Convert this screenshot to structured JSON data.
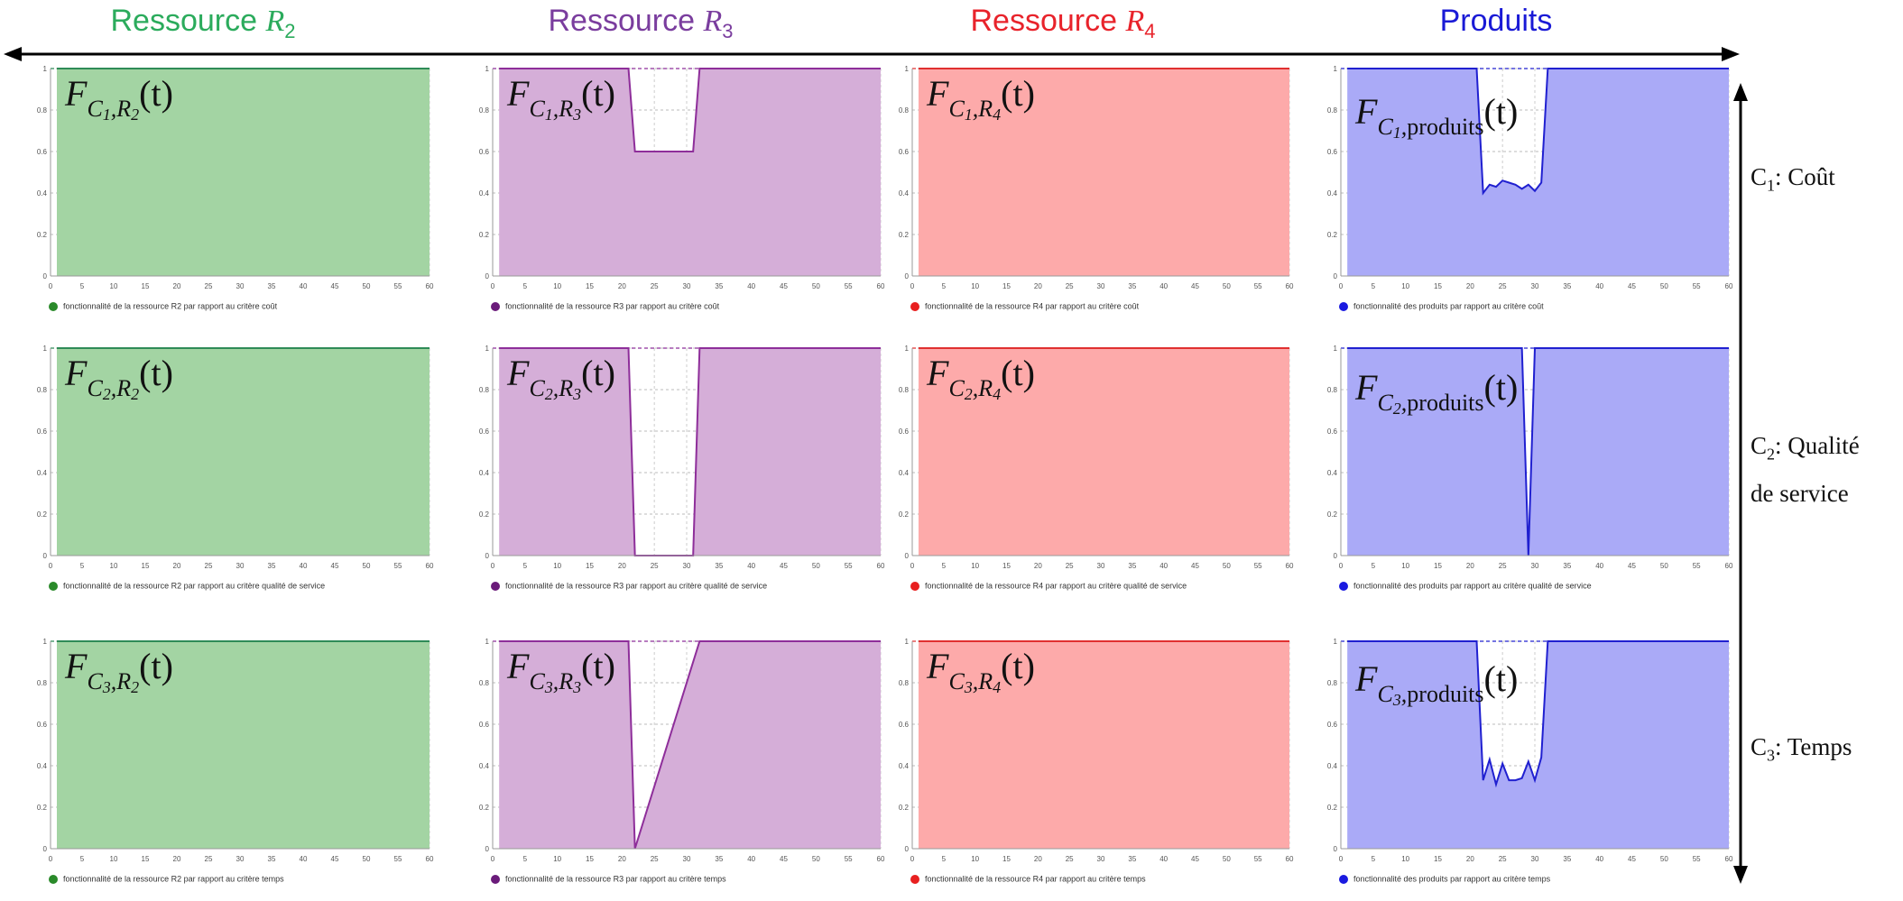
{
  "columns": [
    {
      "title_text": "Ressource ",
      "title_var": "R",
      "title_sub": "2",
      "color": "#2bab5c"
    },
    {
      "title_text": "Ressource ",
      "title_var": "R",
      "title_sub": "3",
      "color": "#7a3d9e"
    },
    {
      "title_text": "Ressource ",
      "title_var": "R",
      "title_sub": "4",
      "color": "#e8232b"
    },
    {
      "title_text": "Produits",
      "title_var": "",
      "title_sub": "",
      "color": "#1a1ad6"
    }
  ],
  "rows": [
    {
      "label_C": "C",
      "label_sub": "1",
      "label_text": ": Coût",
      "label_line2": ""
    },
    {
      "label_C": "C",
      "label_sub": "2",
      "label_text": ": Qualité",
      "label_line2": "de service"
    },
    {
      "label_C": "C",
      "label_sub": "3",
      "label_text": ":  Temps",
      "label_line2": ""
    }
  ],
  "panels": [
    {
      "f_sub": "C",
      "f_subsub": "1",
      "f_res": "R",
      "f_res_sub": "2",
      "f_t": "(t)",
      "legend": "fonctionnalité de la ressource R2 par rapport au critère coût"
    },
    {
      "f_sub": "C",
      "f_subsub": "1",
      "f_res": "R",
      "f_res_sub": "3",
      "f_t": "(t)",
      "legend": "fonctionnalité de la ressource R3 par rapport au critère coût"
    },
    {
      "f_sub": "C",
      "f_subsub": "1",
      "f_res": "R",
      "f_res_sub": "4",
      "f_t": "(t)",
      "legend": "fonctionnalité de la ressource R4 par rapport au critère coût"
    },
    {
      "f_sub": "C",
      "f_subsub": "1",
      "f_res": "produits",
      "f_res_sub": "",
      "f_t": "(t)",
      "legend": "fonctionnalité des produits par rapport au critère coût"
    },
    {
      "f_sub": "C",
      "f_subsub": "2",
      "f_res": "R",
      "f_res_sub": "2",
      "f_t": "(t)",
      "legend": "fonctionnalité de la ressource R2 par rapport au critère qualité de service"
    },
    {
      "f_sub": "C",
      "f_subsub": "2",
      "f_res": "R",
      "f_res_sub": "3",
      "f_t": "(t)",
      "legend": "fonctionnalité de la ressource R3 par rapport au critère qualité de service"
    },
    {
      "f_sub": "C",
      "f_subsub": "2",
      "f_res": "R",
      "f_res_sub": "4",
      "f_t": "(t)",
      "legend": "fonctionnalité de la ressource R4 par rapport au critère qualité de service"
    },
    {
      "f_sub": "C",
      "f_subsub": "2",
      "f_res": "produits",
      "f_res_sub": "",
      "f_t": "(t)",
      "legend": "fonctionnalité des produits par rapport au critère qualité de service"
    },
    {
      "f_sub": "C",
      "f_subsub": "3",
      "f_res": "R",
      "f_res_sub": "2",
      "f_t": "(t)",
      "legend": "fonctionnalité de la ressource R2 par rapport au critère temps"
    },
    {
      "f_sub": "C",
      "f_subsub": "3",
      "f_res": "R",
      "f_res_sub": "3",
      "f_t": "(t)",
      "legend": "fonctionnalité de la ressource R3 par rapport au critère temps"
    },
    {
      "f_sub": "C",
      "f_subsub": "3",
      "f_res": "R",
      "f_res_sub": "4",
      "f_t": "(t)",
      "legend": "fonctionnalité de la ressource R4 par rapport au critère temps"
    },
    {
      "f_sub": "C",
      "f_subsub": "3",
      "f_res": "produits",
      "f_res_sub": "",
      "f_t": "(t)",
      "legend": "fonctionnalité des produits par rapport au critère temps"
    }
  ],
  "chart_data": [
    {
      "type": "area",
      "title": "",
      "xlabel": "",
      "ylabel": "",
      "xlim": [
        0,
        60
      ],
      "ylim": [
        0,
        1
      ],
      "grid": true,
      "legend_placement": "bottom-left",
      "fill_color": "#a3d4a3",
      "line_color": "#2e8b57",
      "marker_color": "#2a8a2a",
      "x_ticks": [
        0,
        5,
        10,
        15,
        20,
        25,
        30,
        35,
        40,
        45,
        50,
        55,
        60
      ],
      "y_ticks": [
        "0",
        "0.2",
        "0.4",
        "0.6",
        "0.8",
        "1"
      ],
      "series": [
        {
          "x": [
            1,
            60
          ],
          "y": [
            1,
            1
          ]
        }
      ]
    },
    {
      "type": "area",
      "title": "",
      "xlabel": "",
      "ylabel": "",
      "xlim": [
        0,
        60
      ],
      "ylim": [
        0,
        1
      ],
      "grid": true,
      "legend_placement": "bottom-left",
      "fill_color": "#d5aed8",
      "line_color": "#8e2e9a",
      "marker_color": "#6a1b7a",
      "x_ticks": [
        0,
        5,
        10,
        15,
        20,
        25,
        30,
        35,
        40,
        45,
        50,
        55,
        60
      ],
      "y_ticks": [
        "0",
        "0.2",
        "0.4",
        "0.6",
        "0.8",
        "1"
      ],
      "series": [
        {
          "x": [
            1,
            21,
            22,
            31,
            32,
            60
          ],
          "y": [
            1,
            1,
            0.6,
            0.6,
            1,
            1
          ]
        }
      ]
    },
    {
      "type": "area",
      "title": "",
      "xlabel": "",
      "ylabel": "",
      "xlim": [
        0,
        60
      ],
      "ylim": [
        0,
        1
      ],
      "grid": true,
      "legend_placement": "bottom-left",
      "fill_color": "#fdaaaa",
      "line_color": "#e03030",
      "marker_color": "#e82020",
      "x_ticks": [
        0,
        5,
        10,
        15,
        20,
        25,
        30,
        35,
        40,
        45,
        50,
        55,
        60
      ],
      "y_ticks": [
        "0",
        "0.2",
        "0.4",
        "0.6",
        "0.8",
        "1"
      ],
      "series": [
        {
          "x": [
            1,
            60
          ],
          "y": [
            1,
            1
          ]
        }
      ]
    },
    {
      "type": "area",
      "title": "",
      "xlabel": "",
      "ylabel": "",
      "xlim": [
        0,
        60
      ],
      "ylim": [
        0,
        1
      ],
      "grid": true,
      "legend_placement": "bottom-left",
      "fill_color": "#aaaaf7",
      "line_color": "#2020d0",
      "marker_color": "#1a1ae0",
      "x_ticks": [
        0,
        5,
        10,
        15,
        20,
        25,
        30,
        35,
        40,
        45,
        50,
        55,
        60
      ],
      "y_ticks": [
        "0",
        "0.2",
        "0.4",
        "0.6",
        "0.8",
        "1"
      ],
      "series": [
        {
          "x": [
            1,
            21,
            22,
            23,
            24,
            25,
            26,
            27,
            28,
            29,
            30,
            31,
            32,
            60
          ],
          "y": [
            1,
            1,
            0.4,
            0.44,
            0.43,
            0.46,
            0.45,
            0.44,
            0.42,
            0.44,
            0.41,
            0.45,
            1,
            1
          ]
        }
      ]
    },
    {
      "type": "area",
      "title": "",
      "xlabel": "",
      "ylabel": "",
      "xlim": [
        0,
        60
      ],
      "ylim": [
        0,
        1
      ],
      "grid": true,
      "legend_placement": "bottom-left",
      "fill_color": "#a3d4a3",
      "line_color": "#2e8b57",
      "marker_color": "#2a8a2a",
      "x_ticks": [
        0,
        5,
        10,
        15,
        20,
        25,
        30,
        35,
        40,
        45,
        50,
        55,
        60
      ],
      "y_ticks": [
        "0",
        "0.2",
        "0.4",
        "0.6",
        "0.8",
        "1"
      ],
      "series": [
        {
          "x": [
            1,
            60
          ],
          "y": [
            1,
            1
          ]
        }
      ]
    },
    {
      "type": "area",
      "title": "",
      "xlabel": "",
      "ylabel": "",
      "xlim": [
        0,
        60
      ],
      "ylim": [
        0,
        1
      ],
      "grid": true,
      "legend_placement": "bottom-left",
      "fill_color": "#d5aed8",
      "line_color": "#8e2e9a",
      "marker_color": "#6a1b7a",
      "x_ticks": [
        0,
        5,
        10,
        15,
        20,
        25,
        30,
        35,
        40,
        45,
        50,
        55,
        60
      ],
      "y_ticks": [
        "0",
        "0.2",
        "0.4",
        "0.6",
        "0.8",
        "1"
      ],
      "series": [
        {
          "x": [
            1,
            21,
            22,
            31,
            32,
            60
          ],
          "y": [
            1,
            1,
            0,
            0,
            1,
            1
          ]
        }
      ]
    },
    {
      "type": "area",
      "title": "",
      "xlabel": "",
      "ylabel": "",
      "xlim": [
        0,
        60
      ],
      "ylim": [
        0,
        1
      ],
      "grid": true,
      "legend_placement": "bottom-left",
      "fill_color": "#fdaaaa",
      "line_color": "#e03030",
      "marker_color": "#e82020",
      "x_ticks": [
        0,
        5,
        10,
        15,
        20,
        25,
        30,
        35,
        40,
        45,
        50,
        55,
        60
      ],
      "y_ticks": [
        "0",
        "0.2",
        "0.4",
        "0.6",
        "0.8",
        "1"
      ],
      "series": [
        {
          "x": [
            1,
            60
          ],
          "y": [
            1,
            1
          ]
        }
      ]
    },
    {
      "type": "area",
      "title": "",
      "xlabel": "",
      "ylabel": "",
      "xlim": [
        0,
        60
      ],
      "ylim": [
        0,
        1
      ],
      "grid": true,
      "legend_placement": "bottom-left",
      "fill_color": "#aaaaf7",
      "line_color": "#2020d0",
      "marker_color": "#1a1ae0",
      "x_ticks": [
        0,
        5,
        10,
        15,
        20,
        25,
        30,
        35,
        40,
        45,
        50,
        55,
        60
      ],
      "y_ticks": [
        "0",
        "0.2",
        "0.4",
        "0.6",
        "0.8",
        "1"
      ],
      "series": [
        {
          "x": [
            1,
            28,
            29,
            30,
            60
          ],
          "y": [
            1,
            1,
            0,
            1,
            1
          ]
        }
      ]
    },
    {
      "type": "area",
      "title": "",
      "xlabel": "",
      "ylabel": "",
      "xlim": [
        0,
        60
      ],
      "ylim": [
        0,
        1
      ],
      "grid": true,
      "legend_placement": "bottom-left",
      "fill_color": "#a3d4a3",
      "line_color": "#2e8b57",
      "marker_color": "#2a8a2a",
      "x_ticks": [
        0,
        5,
        10,
        15,
        20,
        25,
        30,
        35,
        40,
        45,
        50,
        55,
        60
      ],
      "y_ticks": [
        "0",
        "0.2",
        "0.4",
        "0.6",
        "0.8",
        "1"
      ],
      "series": [
        {
          "x": [
            1,
            60
          ],
          "y": [
            1,
            1
          ]
        }
      ]
    },
    {
      "type": "area",
      "title": "",
      "xlabel": "",
      "ylabel": "",
      "xlim": [
        0,
        60
      ],
      "ylim": [
        0,
        1
      ],
      "grid": true,
      "legend_placement": "bottom-left",
      "fill_color": "#d5aed8",
      "line_color": "#8e2e9a",
      "marker_color": "#6a1b7a",
      "x_ticks": [
        0,
        5,
        10,
        15,
        20,
        25,
        30,
        35,
        40,
        45,
        50,
        55,
        60
      ],
      "y_ticks": [
        "0",
        "0.2",
        "0.4",
        "0.6",
        "0.8",
        "1"
      ],
      "series": [
        {
          "x": [
            1,
            21,
            22,
            32,
            60
          ],
          "y": [
            1,
            1,
            0,
            1,
            1
          ]
        }
      ]
    },
    {
      "type": "area",
      "title": "",
      "xlabel": "",
      "ylabel": "",
      "xlim": [
        0,
        60
      ],
      "ylim": [
        0,
        1
      ],
      "grid": true,
      "legend_placement": "bottom-left",
      "fill_color": "#fdaaaa",
      "line_color": "#e03030",
      "marker_color": "#e82020",
      "x_ticks": [
        0,
        5,
        10,
        15,
        20,
        25,
        30,
        35,
        40,
        45,
        50,
        55,
        60
      ],
      "y_ticks": [
        "0",
        "0.2",
        "0.4",
        "0.6",
        "0.8",
        "1"
      ],
      "series": [
        {
          "x": [
            1,
            60
          ],
          "y": [
            1,
            1
          ]
        }
      ]
    },
    {
      "type": "area",
      "title": "",
      "xlabel": "",
      "ylabel": "",
      "xlim": [
        0,
        60
      ],
      "ylim": [
        0,
        1
      ],
      "grid": true,
      "legend_placement": "bottom-left",
      "fill_color": "#aaaaf7",
      "line_color": "#2020d0",
      "marker_color": "#1a1ae0",
      "x_ticks": [
        0,
        5,
        10,
        15,
        20,
        25,
        30,
        35,
        40,
        45,
        50,
        55,
        60
      ],
      "y_ticks": [
        "0",
        "0.2",
        "0.4",
        "0.6",
        "0.8",
        "1"
      ],
      "series": [
        {
          "x": [
            1,
            21,
            22,
            23,
            24,
            25,
            26,
            27,
            28,
            29,
            30,
            31,
            32,
            60
          ],
          "y": [
            1,
            1,
            0.33,
            0.43,
            0.31,
            0.41,
            0.33,
            0.33,
            0.34,
            0.42,
            0.33,
            0.44,
            1,
            1
          ]
        }
      ]
    }
  ]
}
